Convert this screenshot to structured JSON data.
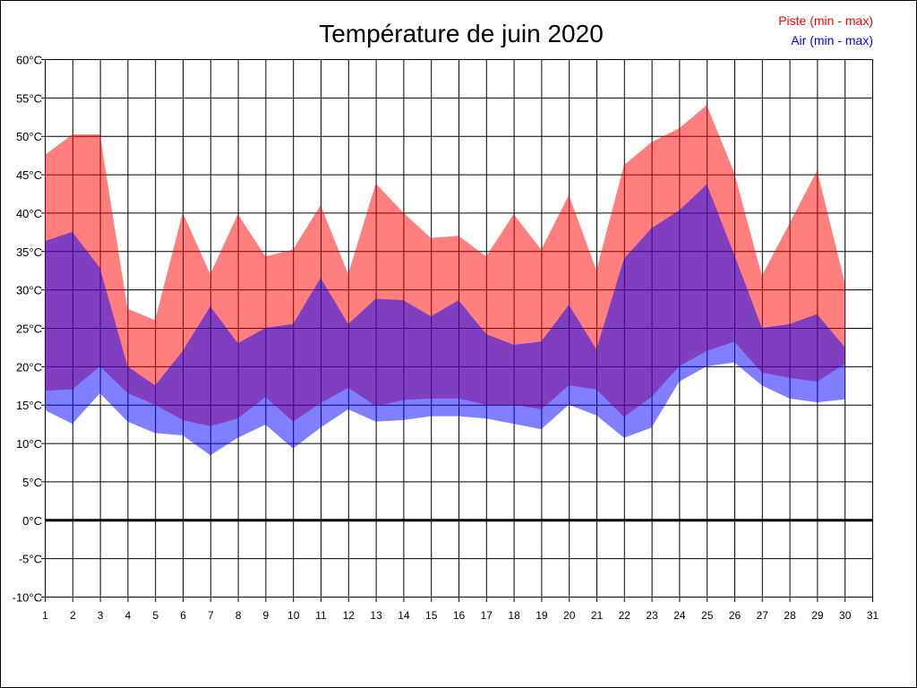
{
  "chart_data": {
    "type": "area",
    "title": "Température de juin 2020",
    "xlabel": "",
    "ylabel": "",
    "xlim": [
      1,
      31
    ],
    "ylim": [
      -10,
      60
    ],
    "x_ticks": [
      "1",
      "2",
      "3",
      "4",
      "5",
      "6",
      "7",
      "8",
      "9",
      "10",
      "11",
      "12",
      "13",
      "14",
      "15",
      "16",
      "17",
      "18",
      "19",
      "20",
      "21",
      "22",
      "23",
      "24",
      "25",
      "26",
      "27",
      "28",
      "29",
      "30",
      "31"
    ],
    "y_ticks": [
      "-10°C",
      "-5°C",
      "0°C",
      "5°C",
      "10°C",
      "15°C",
      "20°C",
      "25°C",
      "30°C",
      "35°C",
      "40°C",
      "45°C",
      "50°C",
      "55°C",
      "60°C"
    ],
    "grid": true,
    "legend_position": "top-right",
    "x": [
      1,
      2,
      3,
      4,
      5,
      6,
      7,
      8,
      9,
      10,
      11,
      12,
      13,
      14,
      15,
      16,
      17,
      18,
      19,
      20,
      21,
      22,
      23,
      24,
      25,
      26,
      27,
      28,
      29,
      30
    ],
    "series": [
      {
        "name": "Piste (min - max)",
        "color": "#ff0000",
        "min": [
          16.8,
          17.0,
          20.0,
          16.5,
          15.0,
          13.0,
          12.2,
          13.2,
          16.0,
          12.8,
          15.2,
          17.2,
          14.8,
          15.6,
          15.8,
          15.8,
          15.0,
          15.0,
          14.4,
          17.5,
          17.0,
          13.4,
          16.0,
          20.0,
          22.0,
          23.2,
          19.2,
          18.5,
          18.0,
          20.3
        ],
        "max": [
          47.5,
          50.2,
          50.2,
          27.5,
          26.0,
          40.0,
          32.0,
          39.8,
          34.3,
          35.2,
          41.0,
          32.0,
          43.8,
          40.0,
          36.7,
          37.0,
          34.3,
          39.8,
          35.2,
          42.3,
          32.5,
          46.2,
          49.2,
          51.0,
          54.0,
          45.2,
          31.8,
          38.6,
          45.5,
          31.0
        ]
      },
      {
        "name": "Air (min - max)",
        "color": "#0000ff",
        "min": [
          14.3,
          12.5,
          16.5,
          12.8,
          11.3,
          11.0,
          8.4,
          10.7,
          12.4,
          9.3,
          12.0,
          14.4,
          12.8,
          13.0,
          13.5,
          13.5,
          13.2,
          12.5,
          11.8,
          15.0,
          13.6,
          10.7,
          12.0,
          18.0,
          20.0,
          20.5,
          17.5,
          15.8,
          15.3,
          15.7
        ],
        "max": [
          36.3,
          37.5,
          32.8,
          20.0,
          17.5,
          22.0,
          27.8,
          23.0,
          25.0,
          25.5,
          31.5,
          25.5,
          28.8,
          28.6,
          26.5,
          28.6,
          24.2,
          22.8,
          23.2,
          28.0,
          22.2,
          34.0,
          38.0,
          40.3,
          43.7,
          34.5,
          25.0,
          25.5,
          26.8,
          22.5
        ]
      }
    ]
  }
}
